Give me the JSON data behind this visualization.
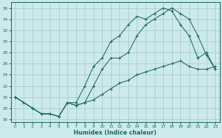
{
  "xlabel": "Humidex (Indice chaleur)",
  "bg_color": "#cceaea",
  "grid_color": "#aacccc",
  "line_color": "#1a6b5a",
  "xlim": [
    -0.5,
    23.5
  ],
  "ylim": [
    15.5,
    37.0
  ],
  "xticks": [
    0,
    1,
    2,
    3,
    4,
    5,
    6,
    7,
    8,
    9,
    10,
    11,
    12,
    13,
    14,
    15,
    16,
    17,
    18,
    19,
    20,
    21,
    22,
    23
  ],
  "yticks": [
    16,
    18,
    20,
    22,
    24,
    26,
    28,
    30,
    32,
    34,
    36
  ],
  "line1_x": [
    0,
    1,
    2,
    3,
    4,
    5,
    6,
    7,
    8,
    9,
    10,
    11,
    12,
    13,
    14,
    15,
    16,
    17,
    18,
    19,
    20,
    21,
    22,
    23
  ],
  "line1_y": [
    20,
    19,
    18,
    17,
    17,
    16.5,
    19,
    19,
    22,
    25.5,
    27,
    30,
    31,
    33,
    34.5,
    34,
    35,
    36,
    35.5,
    33,
    31,
    27,
    28,
    25
  ],
  "line2_x": [
    0,
    2,
    3,
    4,
    5,
    6,
    7,
    8,
    9,
    10,
    11,
    12,
    13,
    14,
    15,
    16,
    17,
    18,
    19,
    20,
    21,
    22,
    23
  ],
  "line2_y": [
    20,
    18,
    17,
    17,
    16.5,
    19,
    18.5,
    19,
    22,
    25,
    27,
    27,
    28,
    31,
    33,
    34,
    35,
    36,
    35,
    34,
    31,
    27.5,
    25
  ],
  "line3_x": [
    0,
    2,
    3,
    4,
    5,
    6,
    7,
    8,
    9,
    10,
    11,
    12,
    13,
    14,
    15,
    16,
    17,
    18,
    19,
    20,
    21,
    22,
    23
  ],
  "line3_y": [
    20,
    18,
    17,
    17,
    16.5,
    19,
    18.5,
    19,
    19.5,
    20.5,
    21.5,
    22.5,
    23,
    24,
    24.5,
    25,
    25.5,
    26,
    26.5,
    25.5,
    25,
    25,
    25.5
  ]
}
